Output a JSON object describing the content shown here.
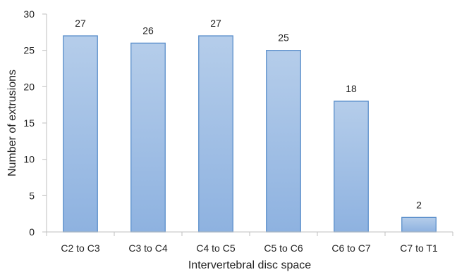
{
  "chart_data": {
    "type": "bar",
    "categories": [
      "C2 to C3",
      "C3 to C4",
      "C4 to C5",
      "C5 to C6",
      "C6 to C7",
      "C7 to T1"
    ],
    "values": [
      27,
      26,
      27,
      25,
      18,
      2
    ],
    "xlabel": "Intervertebral disc space",
    "ylabel": "Number of extrusions",
    "ylim": [
      0,
      30
    ],
    "yticks": [
      0,
      5,
      10,
      15,
      20,
      25,
      30
    ],
    "data_labels": true,
    "grid": false,
    "legend": "none",
    "colors": {
      "bar_top": "#b5cdea",
      "bar_bottom": "#8eb2e0",
      "bar_border": "#5b8fcb",
      "axis": "#bfbfbf",
      "text": "#222222"
    }
  }
}
